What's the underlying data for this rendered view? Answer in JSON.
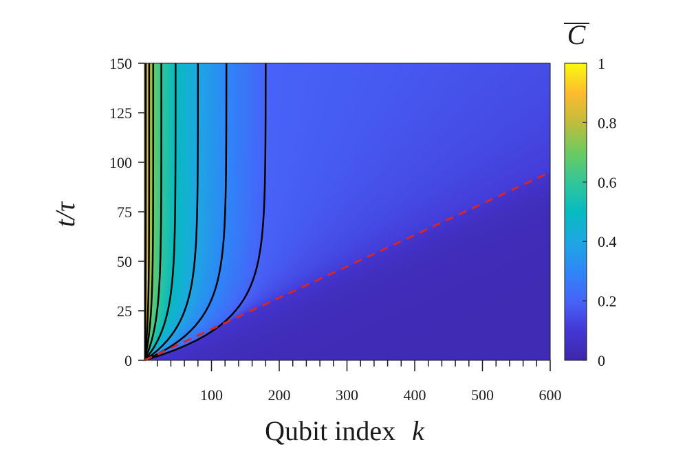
{
  "chart_data": {
    "type": "heatmap",
    "title": "",
    "xlabel": "Qubit index  k",
    "xlabel_text": "Qubit index",
    "xlabel_var": "k",
    "ylabel": "t/τ",
    "xlim": [
      1,
      600
    ],
    "ylim": [
      0,
      150
    ],
    "x_ticks": [
      100,
      200,
      300,
      400,
      500,
      600
    ],
    "x_tick_labels": [
      "100",
      "200",
      "300",
      "400",
      "500",
      "600"
    ],
    "x_minor_step": 20,
    "y_ticks": [
      0,
      25,
      50,
      75,
      100,
      125,
      150
    ],
    "y_tick_labels": [
      "0",
      "25",
      "50",
      "75",
      "100",
      "125",
      "150"
    ],
    "colorbar": {
      "label": "C",
      "overline": true,
      "range": [
        0,
        1
      ],
      "ticks": [
        0,
        0.2,
        0.4,
        0.6,
        0.8,
        1
      ],
      "tick_labels": [
        "0",
        "0.2",
        "0.4",
        "0.6",
        "0.8",
        "1"
      ],
      "colormap": "parula"
    },
    "contour_lines": [
      {
        "level": 0.9,
        "x_at_top": 3
      },
      {
        "level": 0.8,
        "x_at_top": 8
      },
      {
        "level": 0.7,
        "x_at_top": 14
      },
      {
        "level": 0.6,
        "x_at_top": 26
      },
      {
        "level": 0.5,
        "x_at_top": 47
      },
      {
        "level": 0.4,
        "x_at_top": 80
      },
      {
        "level": 0.3,
        "x_at_top": 122
      },
      {
        "level": 0.2,
        "x_at_top": 180
      }
    ],
    "light_cone": {
      "style": "dashed",
      "color": "#d62728",
      "points": [
        [
          1,
          0
        ],
        [
          600,
          95
        ]
      ]
    },
    "grid": false,
    "legend": "none"
  }
}
